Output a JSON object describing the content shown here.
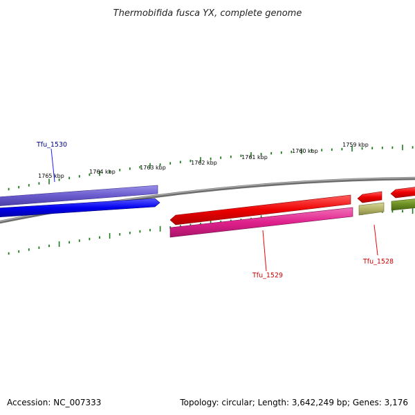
{
  "title": "Thermobifida fusca YX, complete genome",
  "footer": {
    "accession": "Accession: NC_007333",
    "summary": "Topology: circular; Length: 3,642,249 bp; Genes: 3,176"
  },
  "scale_labels": [
    "1765 kbp",
    "1764 kbp",
    "1763 kbp",
    "1762 kbp",
    "1761 kbp",
    "1760 kbp",
    "1759 kbp"
  ],
  "gene_labels": {
    "tfu1530": "Tfu_1530",
    "tfu1529": "Tfu_1529",
    "tfu1528": "Tfu_1528"
  },
  "colors": {
    "backbone": "#808080",
    "ticks": "#1a7a1a",
    "forward_gene": "#0000ee",
    "forward_cog": "#6a5acd",
    "reverse_gene": "#ee0000",
    "reverse_cog_1529": "#e0208c",
    "reverse_cog_1528": "#b5b56a",
    "next_cog": "#6b8e23",
    "label_forward": "#00008b",
    "label_reverse": "#cc0000"
  }
}
